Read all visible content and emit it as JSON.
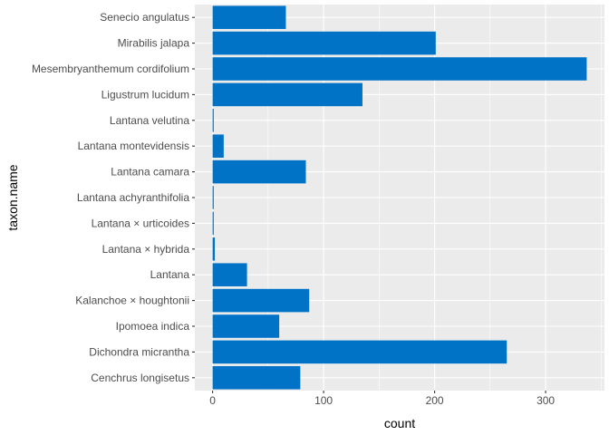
{
  "chart_data": {
    "type": "bar",
    "orientation": "horizontal",
    "categories": [
      "Senecio angulatus",
      "Mirabilis jalapa",
      "Mesembryanthemum cordifolium",
      "Ligustrum lucidum",
      "Lantana velutina",
      "Lantana montevidensis",
      "Lantana camara",
      "Lantana achyranthifolia",
      "Lantana × urticoides",
      "Lantana × hybrida",
      "Lantana",
      "Kalanchoe × houghtonii",
      "Ipomoea indica",
      "Dichondra micrantha",
      "Cenchrus longisetus"
    ],
    "values": [
      66,
      201,
      337,
      135,
      1,
      10,
      84,
      1,
      1,
      2,
      31,
      87,
      60,
      265,
      79
    ],
    "xlabel": "count",
    "ylabel": "taxon.name",
    "xlim": [
      -16,
      353
    ],
    "xticks": [
      0,
      100,
      200,
      300
    ],
    "xtick_labels": [
      "0",
      "100",
      "200",
      "300"
    ],
    "grid": true,
    "legend": "none",
    "bar_color": "#0073c7",
    "panel_background": "#ebebeb",
    "grid_color": "#ffffff"
  }
}
